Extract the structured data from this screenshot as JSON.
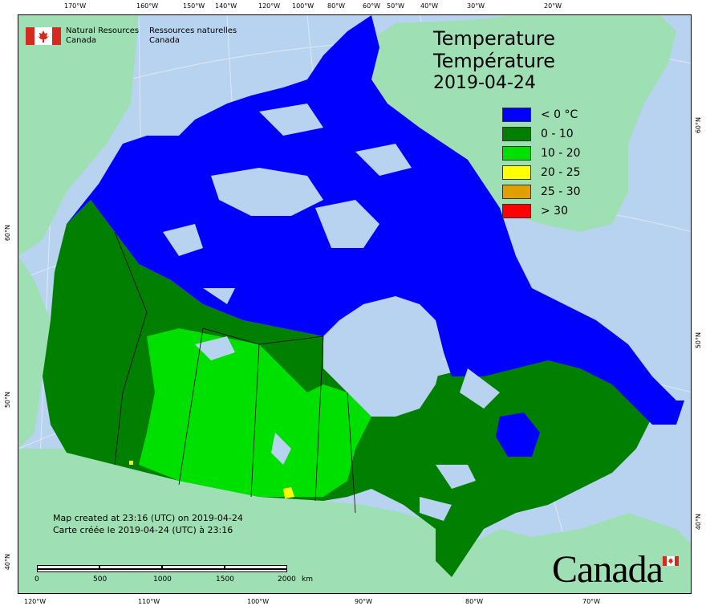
{
  "map": {
    "title_en": "Temperature",
    "title_fr": "Température",
    "date": "2019-04-24",
    "agency": {
      "en_line1": "Natural Resources",
      "en_line2": "Canada",
      "fr_line1": "Ressources naturelles",
      "fr_line2": "Canada"
    },
    "legend": [
      {
        "label": "< 0 °C",
        "color": "#0000ff"
      },
      {
        "label": "0 - 10",
        "color": "#007f00"
      },
      {
        "label": "10 - 20",
        "color": "#00e000"
      },
      {
        "label": "20 - 25",
        "color": "#ffff00"
      },
      {
        "label": "25 - 30",
        "color": "#e0a000"
      },
      {
        "label": "> 30",
        "color": "#ff0000"
      }
    ],
    "credit_en": "Map created at 23:16 (UTC) on 2019-04-24",
    "credit_fr": "Carte créée le 2019-04-24 (UTC) à 23:16",
    "scale_labels": [
      "0",
      "500",
      "1000",
      "1500",
      "2000",
      "km"
    ],
    "wordmark": "Canada",
    "top_ticks": [
      "170°W",
      "160°W",
      "150°W",
      "140°W",
      "120°W",
      "100°W",
      "80°W",
      "60°W",
      "50°W",
      "40°W",
      "30°W",
      "20°W"
    ],
    "bottom_ticks": [
      "120°W",
      "110°W",
      "100°W",
      "90°W",
      "80°W",
      "70°W"
    ],
    "left_ticks": [
      "60°N",
      "50°N",
      "40°N"
    ],
    "right_ticks": [
      "60°N",
      "50°N",
      "40°N"
    ],
    "colors": {
      "ocean": "#b8d3ef",
      "land_other": "#9ee0b4",
      "below_zero": "#0000ff",
      "zero_to_ten": "#007f00",
      "ten_to_twenty": "#00e000",
      "twenty_to_25": "#ffff00"
    }
  }
}
